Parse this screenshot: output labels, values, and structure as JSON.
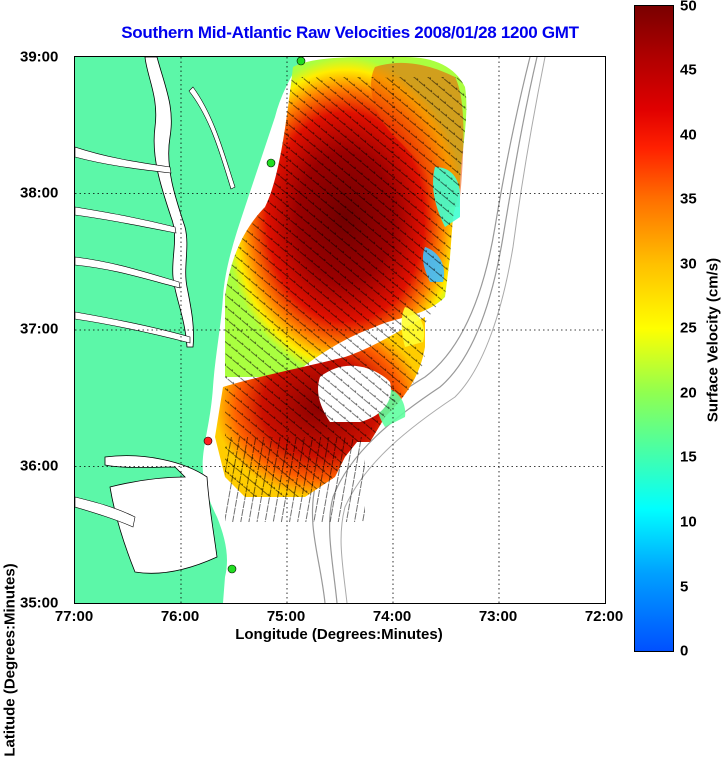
{
  "title": "Southern Mid-Atlantic Raw Velocities 2008/01/28 1200 GMT",
  "x_axis": {
    "label": "Longitude (Degrees:Minutes)",
    "ticks": [
      "77:00",
      "76:00",
      "75:00",
      "74:00",
      "73:00",
      "72:00"
    ],
    "range": [
      -77,
      -72
    ]
  },
  "y_axis": {
    "label": "Latitude (Degrees:Minutes)",
    "ticks": [
      "39:00",
      "38:00",
      "37:00",
      "36:00",
      "35:00"
    ],
    "range": [
      35,
      39
    ]
  },
  "colorbar": {
    "label": "Surface Velocity (cm/s)",
    "ticks": [
      "50",
      "45",
      "40",
      "35",
      "30",
      "25",
      "20",
      "15",
      "10",
      "5",
      "0"
    ],
    "range": [
      0,
      50
    ]
  },
  "grid": "dotted",
  "colors": {
    "land": "#5cf7a8",
    "title": "#0000ee",
    "station": "#22dd22",
    "station_red": "#ff2020"
  }
}
